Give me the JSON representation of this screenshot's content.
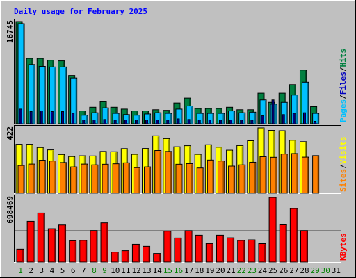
{
  "chart_data": {
    "type": "bar",
    "title": "Daily usage for February 2025",
    "days": [
      "1",
      "2",
      "3",
      "4",
      "5",
      "6",
      "7",
      "8",
      "9",
      "10",
      "11",
      "12",
      "13",
      "14",
      "15",
      "16",
      "17",
      "18",
      "19",
      "20",
      "21",
      "22",
      "23",
      "24",
      "25",
      "26",
      "27",
      "28",
      "29",
      "30",
      "31"
    ],
    "weekend_days": [
      1,
      8,
      9,
      15,
      16,
      22,
      23,
      29,
      30
    ],
    "colors": {
      "title": "#0000ff",
      "hits": "#008040",
      "files": "#0000c0",
      "pages": "#00c0ff",
      "visits": "#ffff00",
      "sites": "#ff8000",
      "kbytes": "#ff0000",
      "weekday_label": "#000000",
      "weekend_label": "#008000",
      "panel_bg": "#c0c0c0"
    },
    "panels": [
      {
        "id": "hits-files-pages",
        "max_label": "16745",
        "side_labels": [
          "Pages",
          "/",
          "Files",
          "/",
          "Hits"
        ],
        "series": [
          {
            "name": "Hits",
            "values": [
              16745,
              10700,
              10700,
              10400,
              10300,
              7900,
              2100,
              2700,
              3600,
              2700,
              2400,
              2100,
              2100,
              2300,
              2200,
              3400,
              4200,
              2500,
              2500,
              2500,
              2700,
              2300,
              2300,
              5000,
              3500,
              5000,
              6400,
              8800,
              2800,
              null,
              null
            ]
          },
          {
            "name": "Files",
            "values": [
              2400,
              2000,
              2100,
              2000,
              2000,
              1700,
              600,
              600,
              700,
              600,
              600,
              600,
              600,
              600,
              600,
              800,
              700,
              600,
              600,
              600,
              600,
              600,
              600,
              1300,
              3900,
              1500,
              1700,
              1800,
              400,
              null,
              null
            ]
          },
          {
            "name": "Pages",
            "values": [
              16400,
              9700,
              9400,
              9300,
              9300,
              7500,
              1400,
              1800,
              2600,
              1700,
              1500,
              1400,
              1600,
              1800,
              1700,
              2400,
              2900,
              1700,
              1700,
              1700,
              2100,
              1800,
              1900,
              3900,
              3200,
              3500,
              4700,
              6800,
              1700,
              null,
              null
            ]
          }
        ]
      },
      {
        "id": "visits-sites",
        "max_label": "422",
        "side_labels": [
          "Sites",
          "/",
          "Visits"
        ],
        "series": [
          {
            "name": "Visits",
            "values": [
              316,
              316,
              295,
              280,
              250,
              237,
              242,
              241,
              270,
              268,
              288,
              251,
              289,
              371,
              353,
              300,
              307,
              251,
              313,
              297,
              278,
              308,
              339,
              422,
              406,
              404,
              342,
              333,
              null,
              null,
              null
            ]
          },
          {
            "name": "Sites",
            "values": [
              179,
              188,
              213,
              208,
              198,
              170,
              188,
              183,
              187,
              190,
              196,
              165,
              170,
              276,
              270,
              187,
              191,
              163,
              214,
              208,
              175,
              183,
              200,
              236,
              232,
              253,
              256,
              233,
              243,
              null,
              null
            ]
          }
        ]
      },
      {
        "id": "kbytes",
        "max_label": "698469",
        "side_labels": [
          "KBytes"
        ],
        "series": [
          {
            "name": "KBytes",
            "values": [
              140000,
              440000,
              530000,
              360000,
              400000,
              230000,
              234000,
              340000,
              423000,
              108000,
              123000,
              192000,
              170000,
              93000,
              333000,
              260000,
              338000,
              290000,
              200000,
              290000,
              262000,
              233000,
              240000,
              199000,
              698000,
              402000,
              578000,
              339000,
              null,
              null,
              null
            ]
          }
        ]
      }
    ]
  }
}
